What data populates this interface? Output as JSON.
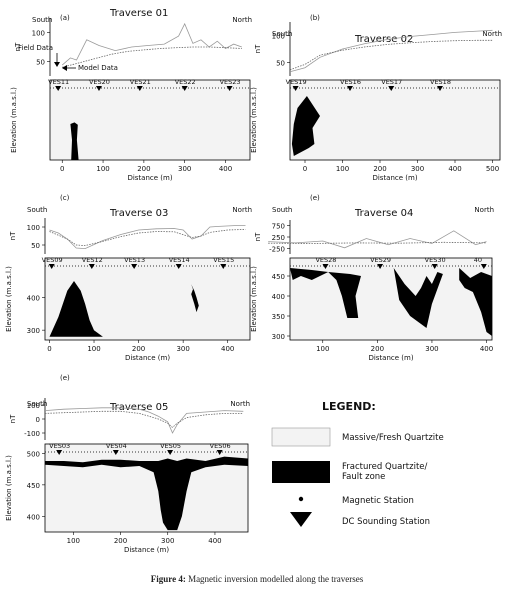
{
  "figure": {
    "caption_label": "Figure 4:",
    "caption_text": "Magnetic inversion modelled along the traverses"
  },
  "annotations": {
    "field_data": "Field Data",
    "model_data": "Model Data"
  },
  "legend": {
    "title": "LEGEND:",
    "items": [
      {
        "label": "Massive/Fresh Quartzite",
        "symbol": "light-fill-box"
      },
      {
        "label": "Fractured Quartzite/ Fault zone",
        "symbol": "black-fill-box"
      },
      {
        "label": "Magnetic Station",
        "symbol": "dot"
      },
      {
        "label": "DC Sounding Station",
        "symbol": "down-triangle"
      }
    ]
  },
  "colors": {
    "quartzite_fill": "#f3f3f3",
    "fracture_fill": "#000000",
    "curve": "#555555"
  },
  "chart_data": [
    {
      "panel": "(a)",
      "type": "line",
      "title": "Traverse 01",
      "left_label": "South",
      "right_label": "North",
      "mag": {
        "ylabel": "nT",
        "yticks": [
          "100",
          "50"
        ],
        "ylim": [
          40,
          120
        ],
        "series": [
          {
            "name": "Field Data",
            "x": [
              0,
              20,
              35,
              60,
              90,
              130,
              170,
              210,
              250,
              285,
              300,
              320,
              340,
              360,
              380,
              400,
              420,
              440
            ],
            "y": [
              55,
              65,
              62,
              90,
              82,
              75,
              80,
              82,
              84,
              95,
              112,
              85,
              90,
              80,
              88,
              78,
              84,
              80
            ]
          },
          {
            "name": "Model Data",
            "x": [
              0,
              40,
              80,
              120,
              160,
              200,
              240,
              280,
              320,
              360,
              400,
              440
            ],
            "y": [
              52,
              58,
              64,
              70,
              74,
              76,
              78,
              79,
              80,
              80,
              79,
              78
            ]
          }
        ]
      },
      "section": {
        "ylabel": "Elevation (m.a.s.l.)",
        "xlabel": "Distance (m)",
        "xticks": [
          "0",
          "100",
          "200",
          "300",
          "400"
        ],
        "xlim": [
          -30,
          460
        ],
        "stations": [
          "VES11",
          "VES20",
          "VES21",
          "VES22",
          "VES23"
        ],
        "station_x": [
          -10,
          90,
          190,
          300,
          410
        ],
        "fractures": [
          [
            [
              20,
              0.55
            ],
            [
              30,
              0.53
            ],
            [
              38,
              0.56
            ],
            [
              36,
              0.75
            ],
            [
              40,
              1.0
            ],
            [
              22,
              1.0
            ],
            [
              24,
              0.75
            ]
          ]
        ]
      }
    },
    {
      "panel": "(b)",
      "type": "line",
      "title": "Traverse 02",
      "left_label": "South",
      "right_label": "North",
      "mag": {
        "ylabel": "nT",
        "yticks": [
          "100",
          "50"
        ],
        "ylim": [
          0,
          130
        ],
        "series": [
          {
            "name": "",
            "x": [
              -40,
              0,
              40,
              100,
              160,
              220,
              280,
              340,
              400,
              460,
              500
            ],
            "y": [
              10,
              20,
              45,
              65,
              78,
              88,
              95,
              100,
              105,
              108,
              110
            ]
          },
          {
            "name": "",
            "x": [
              -40,
              0,
              40,
              100,
              160,
              220,
              280,
              340,
              400,
              460,
              500
            ],
            "y": [
              15,
              28,
              50,
              62,
              70,
              76,
              80,
              83,
              85,
              86,
              86
            ]
          }
        ]
      },
      "section": {
        "ylabel": "Elevation (m.a.s.l.)",
        "xlabel": "Distance (m)",
        "xticks": [
          "0",
          "100",
          "200",
          "300",
          "400",
          "500"
        ],
        "xlim": [
          -40,
          520
        ],
        "stations": [
          "VES19",
          "VES16",
          "VES17",
          "VES18"
        ],
        "station_x": [
          -25,
          120,
          230,
          360
        ],
        "fractures": [
          [
            [
              -30,
              0.55
            ],
            [
              -20,
              0.35
            ],
            [
              5,
              0.2
            ],
            [
              40,
              0.45
            ],
            [
              20,
              0.6
            ],
            [
              25,
              0.8
            ],
            [
              10,
              0.85
            ],
            [
              -30,
              0.95
            ],
            [
              -35,
              0.8
            ]
          ]
        ]
      }
    },
    {
      "panel": "(c)",
      "type": "line",
      "title": "Traverse 03",
      "left_label": "South",
      "right_label": "North",
      "mag": {
        "ylabel": "nT",
        "yticks": [
          "100",
          "50"
        ],
        "ylim": [
          0,
          120
        ],
        "series": [
          {
            "name": "",
            "x": [
              0,
              20,
              40,
              60,
              80,
              120,
              160,
              200,
              240,
              280,
              300,
              320,
              340,
              360,
              380,
              420,
              440
            ],
            "y": [
              80,
              70,
              50,
              20,
              18,
              45,
              65,
              80,
              84,
              85,
              80,
              50,
              60,
              90,
              92,
              95,
              95
            ]
          },
          {
            "name": "",
            "x": [
              0,
              40,
              60,
              80,
              120,
              160,
              200,
              240,
              280,
              320,
              340,
              360,
              400,
              440
            ],
            "y": [
              75,
              50,
              30,
              28,
              42,
              58,
              70,
              75,
              74,
              55,
              60,
              72,
              80,
              82
            ]
          }
        ]
      },
      "section": {
        "ylabel": "Elevation (m.a.s.l.)",
        "xlabel": "Distance (m)",
        "xticks": [
          "0",
          "100",
          "200",
          "300",
          "400"
        ],
        "xlim": [
          -10,
          450
        ],
        "yticks": [
          "400",
          "300"
        ],
        "ylim": [
          270,
          520
        ],
        "stations": [
          "VES09",
          "VES12",
          "VES13",
          "VES14",
          "VES15"
        ],
        "station_x": [
          5,
          95,
          190,
          290,
          390
        ],
        "fractures": [
          [
            [
              0,
              280
            ],
            [
              20,
              340
            ],
            [
              40,
              420
            ],
            [
              55,
              450
            ],
            [
              70,
              420
            ],
            [
              80,
              380
            ],
            [
              90,
              330
            ],
            [
              100,
              300
            ],
            [
              120,
              280
            ]
          ],
          [
            [
              318,
              440
            ],
            [
              325,
              420
            ],
            [
              330,
              400
            ],
            [
              335,
              375
            ],
            [
              330,
              355
            ],
            [
              325,
              380
            ],
            [
              318,
              410
            ],
            [
              322,
              425
            ]
          ]
        ]
      }
    },
    {
      "panel": "(e)",
      "type": "line",
      "title": "Traverse 04",
      "left_label": "South",
      "right_label": "North",
      "mag": {
        "ylabel": "nT",
        "yticks": [
          "750",
          "250",
          "-250"
        ],
        "ylim": [
          -300,
          800
        ],
        "series": [
          {
            "name": "",
            "x": [
              0,
              50,
              100,
              140,
              180,
              220,
              260,
              300,
              340,
              380,
              400
            ],
            "y": [
              100,
              60,
              120,
              -100,
              200,
              0,
              200,
              40,
              450,
              0,
              100
            ]
          },
          {
            "name": "",
            "x": [
              0,
              80,
              160,
              240,
              320,
              400
            ],
            "y": [
              50,
              40,
              60,
              50,
              80,
              60
            ]
          }
        ]
      },
      "section": {
        "ylabel": "Elevation (m.a.s.l.)",
        "xlabel": "Distance (m)",
        "xticks": [
          "100",
          "200",
          "300",
          "400"
        ],
        "xlim": [
          40,
          410
        ],
        "yticks": [
          "450",
          "400",
          "350",
          "300"
        ],
        "ylim": [
          290,
          495
        ],
        "stations": [
          "VES28",
          "VES29",
          "VES30",
          "40"
        ],
        "station_x": [
          105,
          205,
          305,
          395
        ],
        "fractures": [
          [
            [
              40,
              470
            ],
            [
              80,
              465
            ],
            [
              110,
              460
            ],
            [
              150,
              455
            ],
            [
              170,
              450
            ],
            [
              160,
              400
            ],
            [
              165,
              345
            ],
            [
              145,
              345
            ],
            [
              135,
              400
            ],
            [
              125,
              440
            ],
            [
              110,
              460
            ],
            [
              80,
              440
            ],
            [
              60,
              450
            ],
            [
              45,
              440
            ]
          ],
          [
            [
              230,
              470
            ],
            [
              250,
              430
            ],
            [
              270,
              400
            ],
            [
              280,
              420
            ],
            [
              290,
              450
            ],
            [
              300,
              430
            ],
            [
              310,
              460
            ],
            [
              320,
              455
            ],
            [
              300,
              380
            ],
            [
              290,
              320
            ],
            [
              260,
              350
            ],
            [
              240,
              390
            ]
          ],
          [
            [
              350,
              470
            ],
            [
              370,
              445
            ],
            [
              390,
              460
            ],
            [
              410,
              450
            ],
            [
              410,
              300
            ],
            [
              400,
              310
            ],
            [
              390,
              360
            ],
            [
              375,
              410
            ],
            [
              360,
              420
            ],
            [
              350,
              440
            ]
          ]
        ]
      }
    },
    {
      "panel": "(e)",
      "type": "line",
      "title": "Traverse 05",
      "left_label": "South",
      "right_label": "North",
      "mag": {
        "ylabel": "nT",
        "yticks": [
          "100",
          "0",
          "-100"
        ],
        "ylim": [
          -150,
          150
        ],
        "series": [
          {
            "name": "",
            "x": [
              40,
              80,
              120,
              160,
              200,
              240,
              260,
              280,
              300,
              310,
              320,
              340,
              380,
              420,
              460
            ],
            "y": [
              60,
              70,
              75,
              80,
              80,
              70,
              50,
              20,
              -20,
              -100,
              -40,
              40,
              50,
              60,
              55
            ]
          },
          {
            "name": "",
            "x": [
              40,
              80,
              120,
              160,
              200,
              240,
              260,
              280,
              300,
              310,
              320,
              340,
              380,
              420,
              460
            ],
            "y": [
              40,
              45,
              50,
              55,
              55,
              40,
              20,
              0,
              -30,
              -60,
              -30,
              10,
              30,
              40,
              40
            ]
          }
        ]
      },
      "section": {
        "ylabel": "Elevation (m.a.s.l.)",
        "xlabel": "Distance (m)",
        "xticks": [
          "100",
          "200",
          "300",
          "400"
        ],
        "xlim": [
          40,
          470
        ],
        "yticks": [
          "500",
          "450",
          "400"
        ],
        "ylim": [
          375,
          515
        ],
        "stations": [
          "VES03",
          "VES04",
          "VES05",
          "VES06"
        ],
        "station_x": [
          70,
          190,
          305,
          410
        ],
        "fractures": [
          [
            [
              40,
              482
            ],
            [
              80,
              480
            ],
            [
              120,
              478
            ],
            [
              160,
              482
            ],
            [
              200,
              478
            ],
            [
              240,
              480
            ],
            [
              270,
              470
            ],
            [
              280,
              440
            ],
            [
              285,
              410
            ],
            [
              290,
              390
            ],
            [
              300,
              378
            ],
            [
              320,
              378
            ],
            [
              330,
              400
            ],
            [
              340,
              440
            ],
            [
              350,
              470
            ],
            [
              380,
              478
            ],
            [
              420,
              482
            ],
            [
              470,
              480
            ],
            [
              470,
              492
            ],
            [
              420,
              495
            ],
            [
              380,
              488
            ],
            [
              340,
              492
            ],
            [
              320,
              488
            ],
            [
              300,
              492
            ],
            [
              280,
              488
            ],
            [
              240,
              488
            ],
            [
              200,
              490
            ],
            [
              160,
              490
            ],
            [
              120,
              486
            ],
            [
              80,
              488
            ],
            [
              40,
              488
            ]
          ]
        ]
      }
    }
  ]
}
